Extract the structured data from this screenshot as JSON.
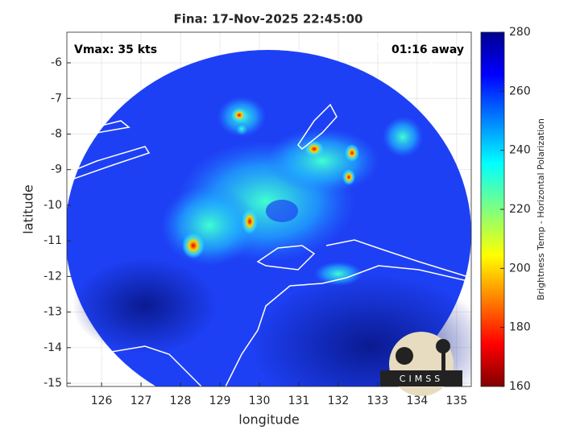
{
  "map": {
    "title": "Fina: 17-Nov-2025 22:45:00",
    "vmax": "Vmax: 35 kts",
    "away": "01:16 away",
    "xlabel": "longitude",
    "ylabel": "latitude",
    "xlim": [
      125.12,
      135.37
    ],
    "ylim": [
      -15.09,
      -5.14
    ],
    "xticks": [
      126,
      127,
      128,
      129,
      130,
      131,
      132,
      133,
      134,
      135
    ],
    "yticks": [
      -6,
      -7,
      -8,
      -9,
      -10,
      -11,
      -12,
      -13,
      -14,
      -15
    ],
    "grid": true,
    "colorbar": {
      "label": "Brightness Temp - Horizontal Polarization",
      "lim": [
        160,
        280
      ],
      "ticks": [
        160,
        180,
        200,
        220,
        240,
        260,
        280
      ]
    },
    "logo": "CIMSS"
  }
}
